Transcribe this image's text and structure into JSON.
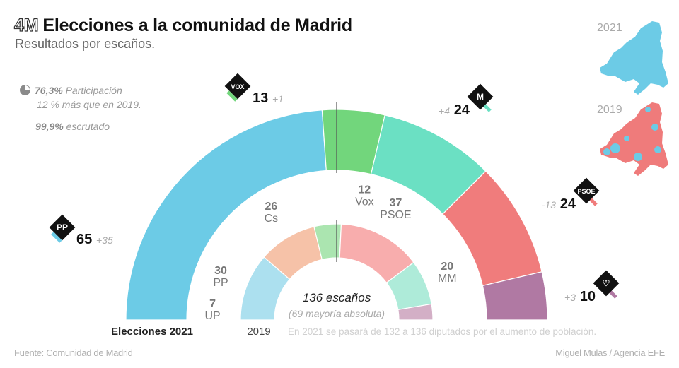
{
  "header": {
    "tag": "4M",
    "title": "Elecciones a la comunidad de Madrid",
    "subtitle": "Resultados por escaños."
  },
  "stats": {
    "participation_value": "76,3%",
    "participation_label": "Participación",
    "participation_note": "12 % más que en 2019.",
    "counted_value": "99,9%",
    "counted_label": "escrutado",
    "participation_icon": "pie-chart-icon"
  },
  "maps": [
    {
      "year": "2021",
      "dominant_color": "#6ccbe6"
    },
    {
      "year": "2019",
      "dominant_color": "#ef7b7b"
    }
  ],
  "chart_data": {
    "type": "pie",
    "subtype": "parliament-semicircle",
    "title": "Elecciones a la comunidad de Madrid",
    "subtitle": "Resultados por escaños.",
    "total_seats": "136 escaños",
    "majority_note": "(69 mayoría absoluta)",
    "majority": 69,
    "rings": [
      {
        "name": "Elecciones 2021",
        "total": 136,
        "series": [
          {
            "party": "PP",
            "seats": 65,
            "change": "+35",
            "color": "#6ccbe6",
            "logo_icon": "pp-logo-icon",
            "logo_text": "PP"
          },
          {
            "party": "Vox",
            "seats": 13,
            "change": "+1",
            "color": "#72d67c",
            "logo_icon": "vox-logo-icon",
            "logo_text": "VOX"
          },
          {
            "party": "Más Madrid",
            "seats": 24,
            "change": "+4",
            "color": "#6be0c3",
            "logo_icon": "mas-madrid-logo-icon",
            "logo_text": "M"
          },
          {
            "party": "PSOE",
            "seats": 24,
            "change": "-13",
            "color": "#f07c7c",
            "logo_icon": "psoe-logo-icon",
            "logo_text": "PSOE"
          },
          {
            "party": "UP",
            "seats": 10,
            "change": "+3",
            "color": "#b079a3",
            "logo_icon": "unidas-podemos-logo-icon",
            "logo_text": "♡"
          }
        ]
      },
      {
        "name": "2019",
        "total": 132,
        "series": [
          {
            "party": "PP",
            "seats": 30,
            "label": "PP",
            "color": "#ace0ef"
          },
          {
            "party": "Cs",
            "seats": 26,
            "label": "Cs",
            "color": "#f6c2a8"
          },
          {
            "party": "Vox",
            "seats": 12,
            "label": "Vox",
            "color": "#abe5b0"
          },
          {
            "party": "PSOE",
            "seats": 37,
            "label": "PSOE",
            "color": "#f8adad"
          },
          {
            "party": "MM",
            "seats": 20,
            "label": "MM",
            "color": "#aeebd9"
          },
          {
            "party": "UP",
            "seats": 7,
            "label": "UP",
            "color": "#d3afc6"
          }
        ]
      }
    ],
    "note": "En 2021 se pasará de 132 a 136 diputados por el aumento de población."
  },
  "footer": {
    "source": "Fuente: Comunidad de Madrid",
    "credit": "Miguel Mulas / Agencia EFE"
  }
}
